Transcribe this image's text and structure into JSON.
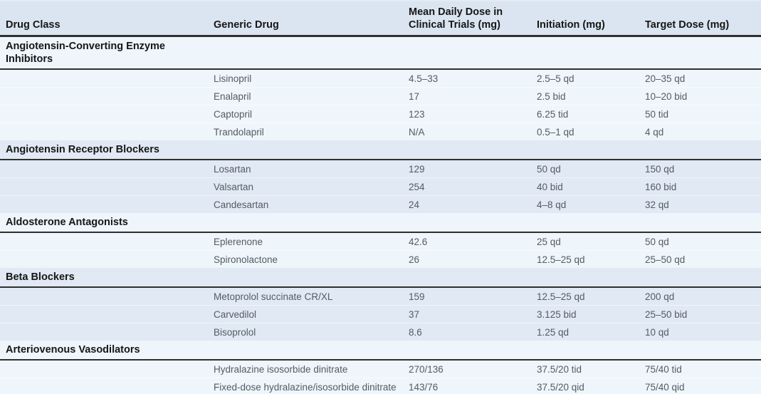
{
  "colors": {
    "header_bg": "#dbe5f1",
    "group_light": "#eef5fb",
    "group_dark": "#e0e9f4",
    "rule_color": "#2f2f2f",
    "header_text": "#161616",
    "data_text": "#565b62"
  },
  "table": {
    "columns": [
      "Drug Class",
      "Generic Drug",
      "Mean Daily Dose in Clinical Trials (mg)",
      "Initiation (mg)",
      "Target Dose (mg)"
    ],
    "groups": [
      {
        "drug_class": "Angiotensin-Converting Enzyme Inhibitors",
        "rows": [
          {
            "generic_drug": "Lisinopril",
            "mean_daily_dose": "4.5–33",
            "initiation": "2.5–5 qd",
            "target_dose": "20–35 qd"
          },
          {
            "generic_drug": "Enalapril",
            "mean_daily_dose": "17",
            "initiation": "2.5 bid",
            "target_dose": "10–20 bid"
          },
          {
            "generic_drug": "Captopril",
            "mean_daily_dose": "123",
            "initiation": "6.25 tid",
            "target_dose": "50 tid"
          },
          {
            "generic_drug": "Trandolapril",
            "mean_daily_dose": "N/A",
            "initiation": "0.5–1 qd",
            "target_dose": "4 qd"
          }
        ]
      },
      {
        "drug_class": "Angiotensin Receptor Blockers",
        "rows": [
          {
            "generic_drug": "Losartan",
            "mean_daily_dose": "129",
            "initiation": "50 qd",
            "target_dose": "150 qd"
          },
          {
            "generic_drug": "Valsartan",
            "mean_daily_dose": "254",
            "initiation": "40 bid",
            "target_dose": "160 bid"
          },
          {
            "generic_drug": "Candesartan",
            "mean_daily_dose": "24",
            "initiation": "4–8 qd",
            "target_dose": "32 qd"
          }
        ]
      },
      {
        "drug_class": "Aldosterone Antagonists",
        "rows": [
          {
            "generic_drug": "Eplerenone",
            "mean_daily_dose": "42.6",
            "initiation": "25 qd",
            "target_dose": "50 qd"
          },
          {
            "generic_drug": "Spironolactone",
            "mean_daily_dose": "26",
            "initiation": "12.5–25 qd",
            "target_dose": "25–50 qd"
          }
        ]
      },
      {
        "drug_class": "Beta Blockers",
        "rows": [
          {
            "generic_drug": "Metoprolol succinate CR/XL",
            "mean_daily_dose": "159",
            "initiation": "12.5–25 qd",
            "target_dose": "200 qd"
          },
          {
            "generic_drug": "Carvedilol",
            "mean_daily_dose": "37",
            "initiation": "3.125 bid",
            "target_dose": "25–50 bid"
          },
          {
            "generic_drug": "Bisoprolol",
            "mean_daily_dose": "8.6",
            "initiation": "1.25 qd",
            "target_dose": "10 qd"
          }
        ]
      },
      {
        "drug_class": "Arteriovenous Vasodilators",
        "rows": [
          {
            "generic_drug": "Hydralazine isosorbide dinitrate",
            "mean_daily_dose": "270/136",
            "initiation": "37.5/20 tid",
            "target_dose": "75/40 tid"
          },
          {
            "generic_drug": "Fixed-dose hydralazine/isosorbide dinitrate",
            "mean_daily_dose": "143/76",
            "initiation": "37.5/20 qid",
            "target_dose": "75/40 qid"
          }
        ]
      }
    ]
  }
}
